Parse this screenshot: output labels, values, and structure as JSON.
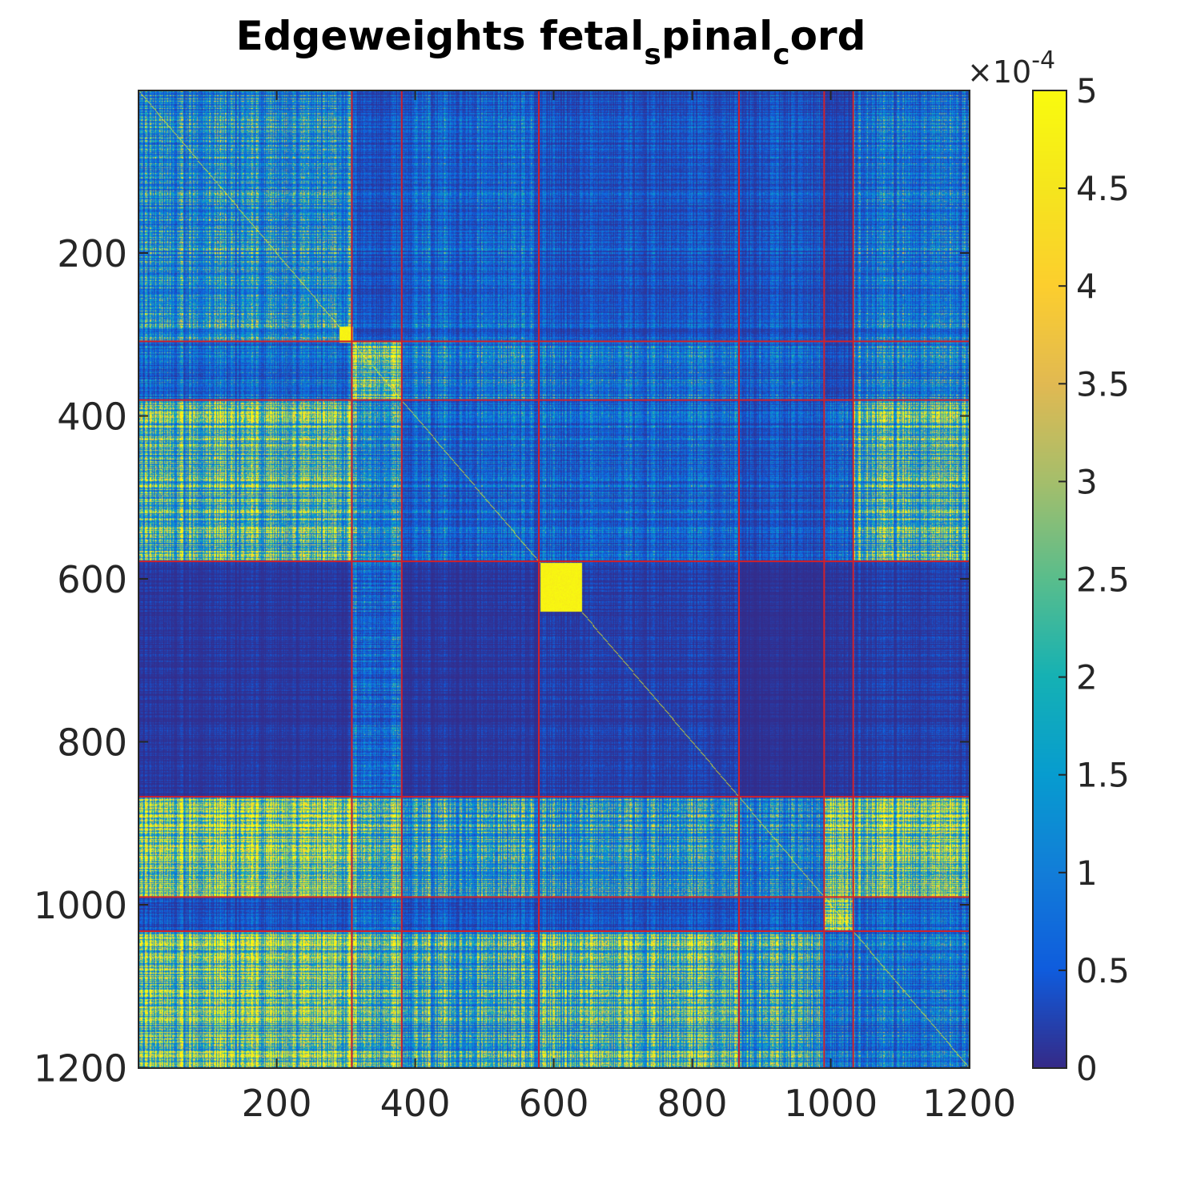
{
  "chart_data": {
    "type": "heatmap",
    "title_parts": [
      "Edgeweights fetal",
      "s",
      "pinal",
      "c",
      "ord"
    ],
    "matrix_size": 1200,
    "xlim": [
      1,
      1200
    ],
    "ylim": [
      1,
      1200
    ],
    "x_ticks": [
      200,
      400,
      600,
      800,
      1000,
      1200
    ],
    "y_ticks": [
      200,
      400,
      600,
      800,
      1000,
      1200
    ],
    "x_tick_labels": [
      "200",
      "400",
      "600",
      "800",
      "1000",
      "1200"
    ],
    "y_tick_labels": [
      "200",
      "400",
      "600",
      "800",
      "1000",
      "1200"
    ],
    "grid": false,
    "colorbar": {
      "min": 0,
      "max": 5,
      "ticks": [
        0,
        0.5,
        1,
        1.5,
        2,
        2.5,
        3,
        3.5,
        4,
        4.5,
        5
      ],
      "tick_labels": [
        "0",
        "0.5",
        "1",
        "1.5",
        "2",
        "2.5",
        "3",
        "3.5",
        "4",
        "4.5",
        "5"
      ],
      "exponent_times": "×",
      "exponent_base": "10",
      "exponent_power": "-4",
      "placement": "right",
      "colormap": "parula"
    },
    "cluster_boundaries": [
      308,
      380,
      578,
      867,
      990,
      1032
    ],
    "boundary_color": "#d0202a",
    "block_mean_levels": [
      [
        1.8,
        0.6,
        0.9,
        0.6,
        0.6,
        0.4,
        1.2
      ],
      [
        1.0,
        4.0,
        1.4,
        1.2,
        0.9,
        0.5,
        1.5
      ],
      [
        3.2,
        1.8,
        0.9,
        0.9,
        0.6,
        1.0,
        3.0
      ],
      [
        0.2,
        1.0,
        0.2,
        0.3,
        0.1,
        0.2,
        0.3
      ],
      [
        4.2,
        3.2,
        2.2,
        2.0,
        1.5,
        4.8,
        3.9
      ],
      [
        0.5,
        0.9,
        0.6,
        0.5,
        0.6,
        4.9,
        0.8
      ],
      [
        4.0,
        3.3,
        2.6,
        3.3,
        2.5,
        1.3,
        1.2
      ]
    ],
    "dense_blocks": [
      [
        1,
        290,
        310,
        300,
        0.5
      ],
      [
        2,
        580,
        640,
        500,
        0.5
      ]
    ]
  }
}
